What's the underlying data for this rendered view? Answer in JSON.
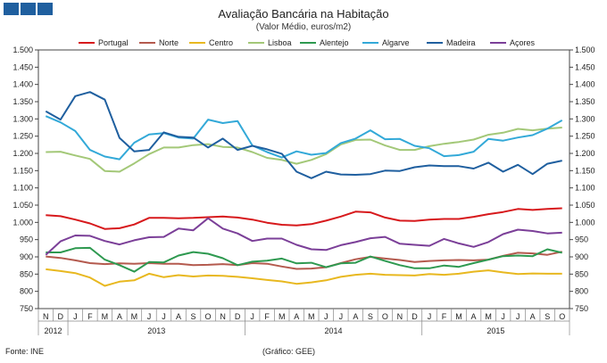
{
  "header": {
    "title": "Avaliação Bancária na Habitação",
    "subtitle": "(Valor Médio, euros/m2)"
  },
  "footer": {
    "source": "Fonte: INE",
    "credit": "(Gráfico: GEE)"
  },
  "chart_data": {
    "type": "line",
    "title": "Avaliação Bancária na Habitação",
    "subtitle": "(Valor Médio, euros/m2)",
    "ylim": [
      750,
      1500
    ],
    "ystep": 50,
    "y_ticks": [
      "750",
      "800",
      "850",
      "900",
      "950",
      "1.000",
      "1.050",
      "1.100",
      "1.150",
      "1.200",
      "1.250",
      "1.300",
      "1.350",
      "1.400",
      "1.450",
      "1.500"
    ],
    "months": [
      "N",
      "D",
      "J",
      "F",
      "M",
      "A",
      "M",
      "J",
      "J",
      "A",
      "S",
      "O",
      "N",
      "D",
      "J",
      "F",
      "M",
      "A",
      "M",
      "J",
      "J",
      "A",
      "S",
      "O",
      "N",
      "D",
      "J",
      "F",
      "M",
      "A",
      "M",
      "J",
      "J",
      "A",
      "S",
      "O"
    ],
    "years": [
      {
        "label": "2012",
        "count": 2
      },
      {
        "label": "2013",
        "count": 12
      },
      {
        "label": "2014",
        "count": 12
      },
      {
        "label": "2015",
        "count": 10
      }
    ],
    "series": [
      {
        "name": "Portugal",
        "color": "#d7191c",
        "values": [
          1021,
          1018,
          1008,
          997,
          981,
          983,
          994,
          1013,
          1013,
          1012,
          1013,
          1015,
          1017,
          1014,
          1008,
          999,
          993,
          991,
          995,
          1005,
          1017,
          1031,
          1029,
          1014,
          1005,
          1004,
          1008,
          1010,
          1010,
          1016,
          1024,
          1030,
          1039,
          1036,
          1039,
          1041
        ]
      },
      {
        "name": "Norte",
        "color": "#b45a4e",
        "values": [
          901,
          897,
          890,
          882,
          879,
          881,
          880,
          882,
          880,
          880,
          876,
          877,
          879,
          876,
          882,
          880,
          872,
          865,
          866,
          870,
          882,
          893,
          900,
          895,
          891,
          885,
          888,
          890,
          891,
          890,
          892,
          903,
          912,
          910,
          906,
          915
        ]
      },
      {
        "name": "Centro",
        "color": "#e8b820",
        "values": [
          864,
          859,
          853,
          840,
          816,
          828,
          832,
          851,
          841,
          847,
          843,
          846,
          845,
          842,
          838,
          833,
          829,
          822,
          826,
          832,
          842,
          848,
          851,
          848,
          847,
          846,
          850,
          848,
          851,
          857,
          861,
          855,
          850,
          852,
          851,
          851
        ]
      },
      {
        "name": "Lisboa",
        "color": "#a3c878",
        "values": [
          1204,
          1205,
          1194,
          1184,
          1149,
          1147,
          1171,
          1198,
          1217,
          1217,
          1224,
          1227,
          1219,
          1217,
          1204,
          1187,
          1181,
          1170,
          1181,
          1198,
          1226,
          1239,
          1240,
          1223,
          1210,
          1210,
          1221,
          1228,
          1233,
          1240,
          1254,
          1260,
          1271,
          1267,
          1272,
          1275
        ]
      },
      {
        "name": "Alentejo",
        "color": "#2e9950",
        "values": [
          913,
          913,
          925,
          926,
          892,
          876,
          857,
          885,
          884,
          904,
          914,
          909,
          896,
          876,
          886,
          889,
          895,
          881,
          883,
          870,
          881,
          883,
          901,
          888,
          876,
          867,
          867,
          875,
          871,
          882,
          892,
          902,
          904,
          902,
          922,
          912
        ]
      },
      {
        "name": "Algarve",
        "color": "#33a9d8",
        "values": [
          1308,
          1290,
          1265,
          1210,
          1191,
          1183,
          1231,
          1255,
          1259,
          1246,
          1243,
          1298,
          1288,
          1294,
          1223,
          1204,
          1188,
          1206,
          1196,
          1201,
          1230,
          1243,
          1267,
          1241,
          1242,
          1222,
          1215,
          1192,
          1195,
          1205,
          1242,
          1237,
          1246,
          1253,
          1272,
          1296
        ]
      },
      {
        "name": "Madeira",
        "color": "#1f5f9f",
        "values": [
          1322,
          1298,
          1366,
          1378,
          1356,
          1245,
          1206,
          1210,
          1261,
          1248,
          1246,
          1217,
          1243,
          1210,
          1222,
          1212,
          1199,
          1147,
          1128,
          1147,
          1139,
          1138,
          1140,
          1150,
          1149,
          1160,
          1165,
          1163,
          1163,
          1156,
          1173,
          1147,
          1167,
          1140,
          1170,
          1179
        ]
      },
      {
        "name": "Açores",
        "color": "#7b3f98",
        "values": [
          906,
          945,
          962,
          961,
          946,
          936,
          948,
          957,
          958,
          982,
          977,
          1012,
          982,
          968,
          946,
          953,
          953,
          935,
          922,
          920,
          934,
          943,
          954,
          958,
          938,
          935,
          932,
          952,
          939,
          929,
          943,
          966,
          979,
          975,
          968,
          970
        ]
      }
    ]
  }
}
